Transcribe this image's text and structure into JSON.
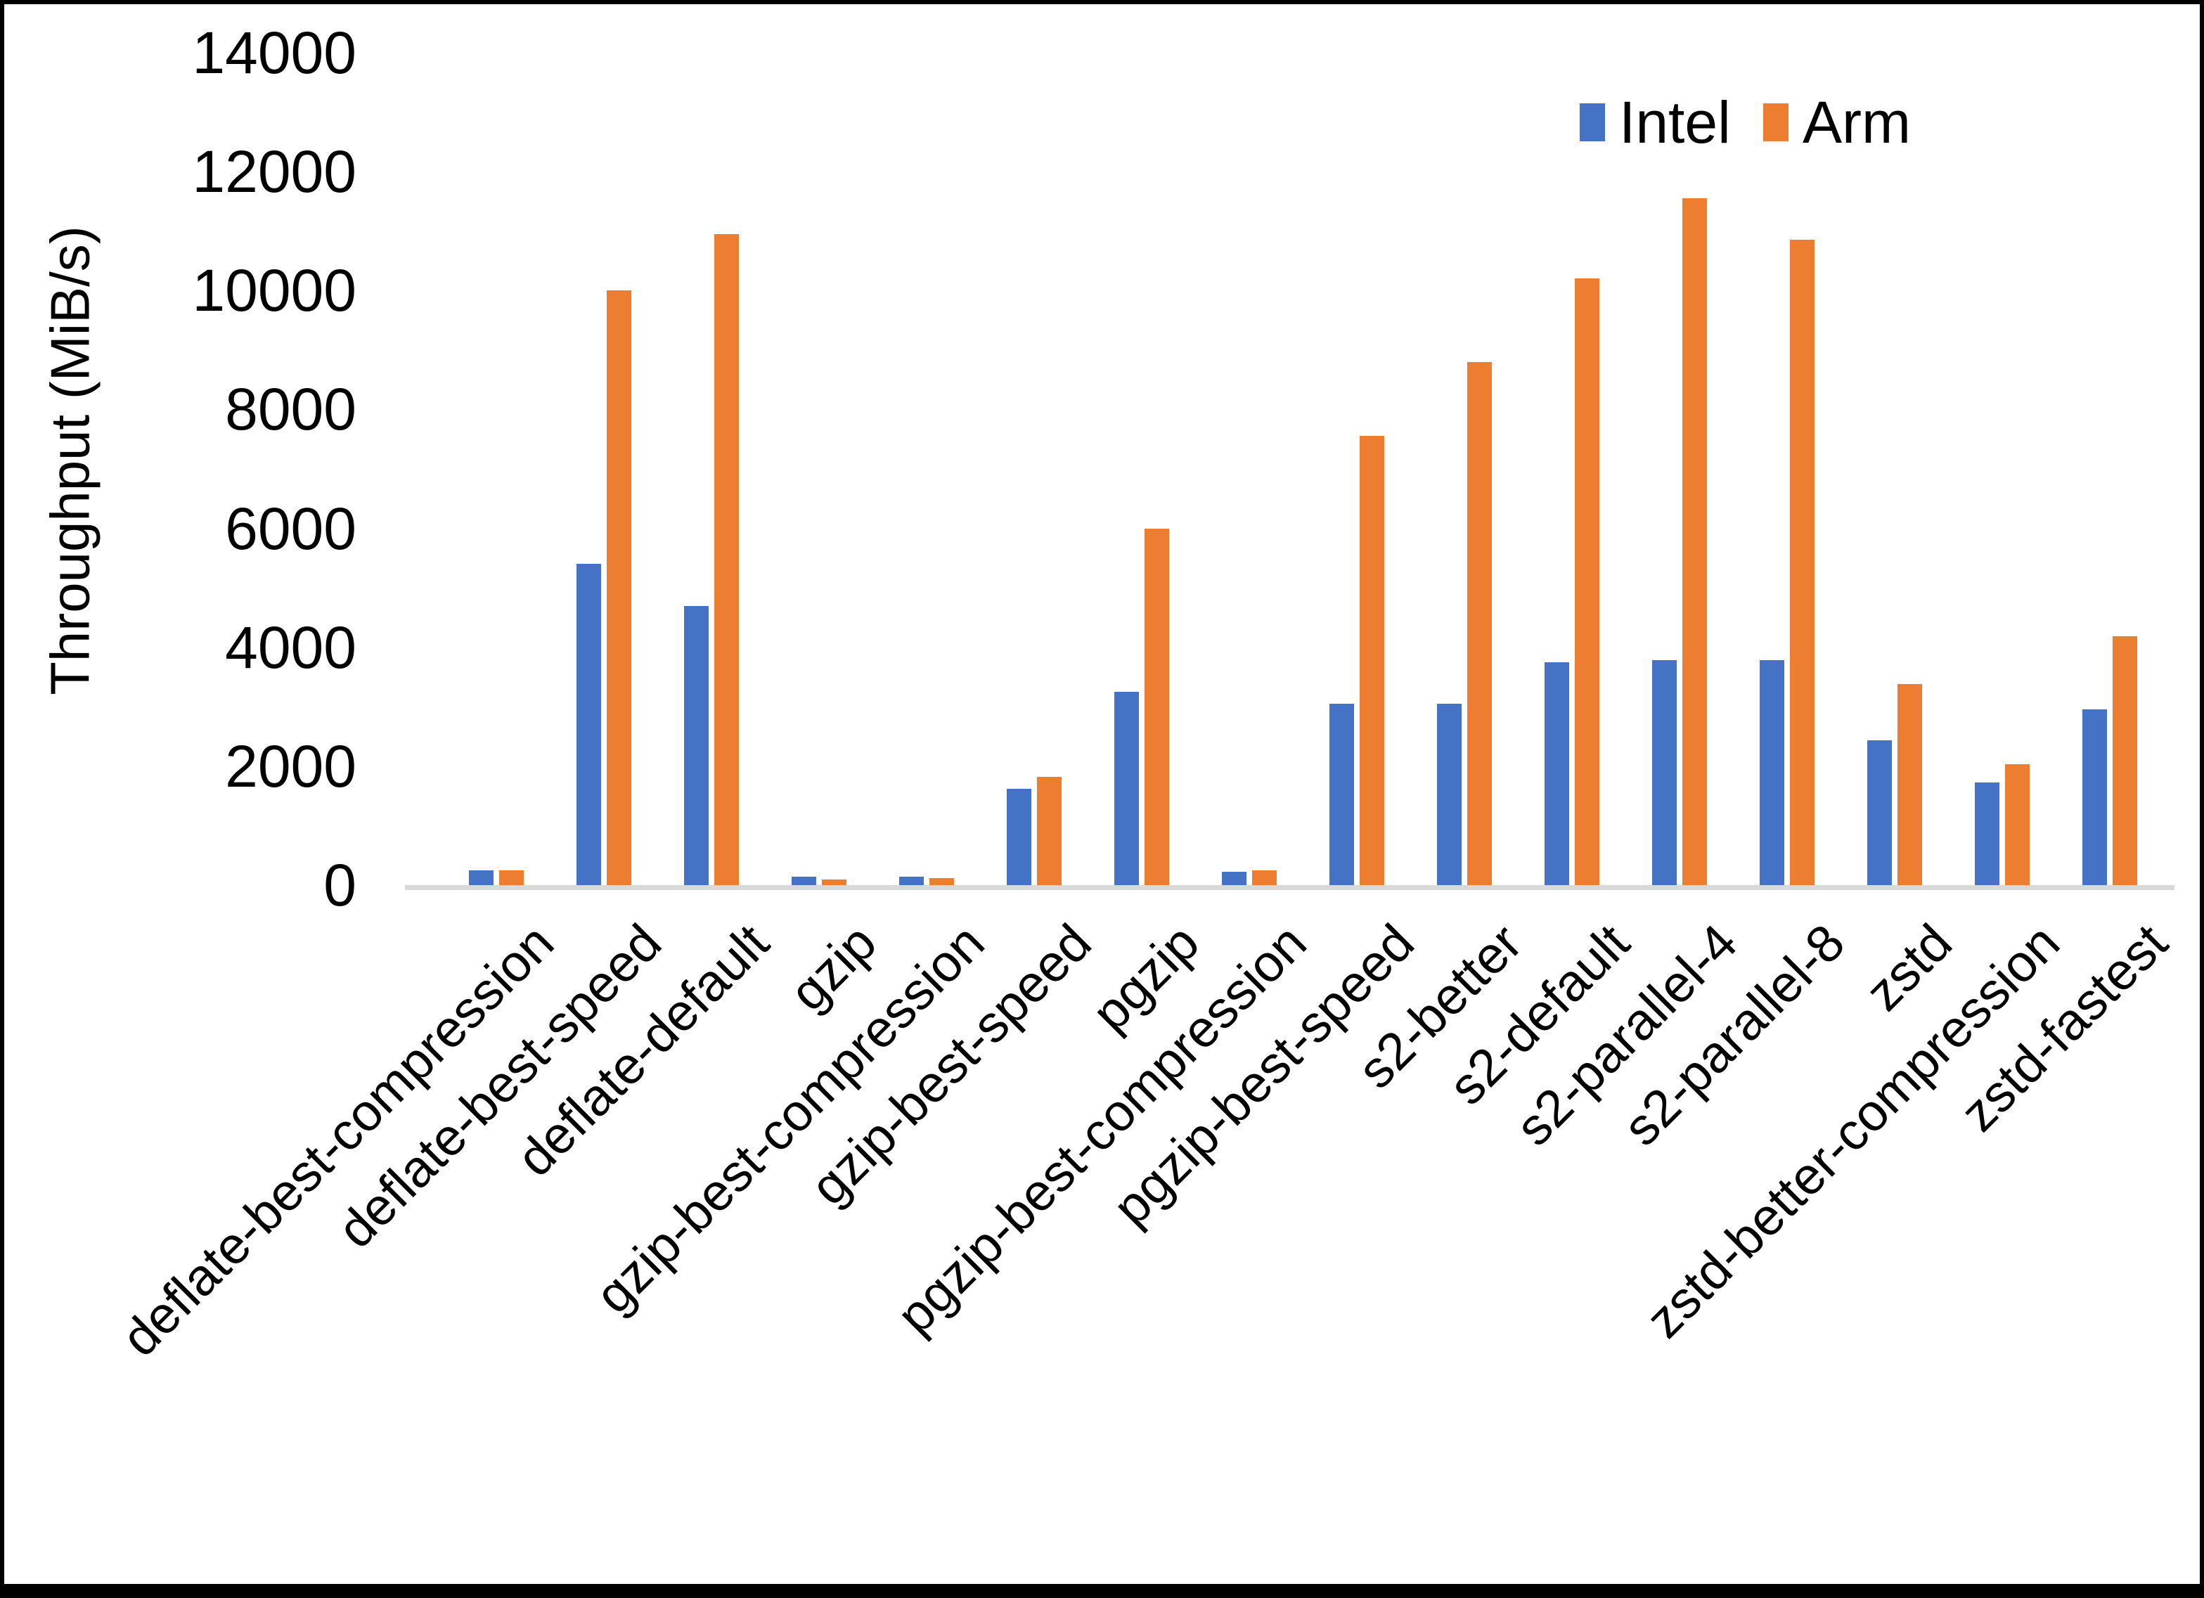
{
  "chart_data": {
    "type": "bar",
    "title": "",
    "xlabel": "",
    "ylabel": "Throughput (MiB/s)",
    "ylim": [
      0,
      14000
    ],
    "ytick_step": 2000,
    "yticks": [
      0,
      2000,
      4000,
      6000,
      8000,
      10000,
      12000,
      14000
    ],
    "grid": false,
    "legend_position": "top-right",
    "categories": [
      "deflate-best-compression",
      "deflate-best-speed",
      "deflate-default",
      "gzip",
      "gzip-best-compression",
      "gzip-best-speed",
      "pgzip",
      "pgzip-best-compression",
      "pgzip-best-speed",
      "s2-better",
      "s2-default",
      "s2-parallel-4",
      "s2-parallel-8",
      "zstd",
      "zstd-better-compression",
      "zstd-fastest"
    ],
    "series": [
      {
        "name": "Intel",
        "color": "#4472C4",
        "values": [
          250,
          5400,
          4700,
          140,
          140,
          1620,
          3250,
          230,
          3050,
          3050,
          3750,
          3780,
          3780,
          2440,
          1730,
          2960
        ]
      },
      {
        "name": "Arm",
        "color": "#ED7D31",
        "values": [
          250,
          10000,
          10950,
          95,
          115,
          1820,
          6000,
          250,
          7550,
          8800,
          10200,
          11550,
          10850,
          3380,
          2030,
          4190
        ]
      }
    ],
    "baseline_color": "#D9D9D9",
    "frame_color": "#000000",
    "background": "#FFFFFF"
  }
}
